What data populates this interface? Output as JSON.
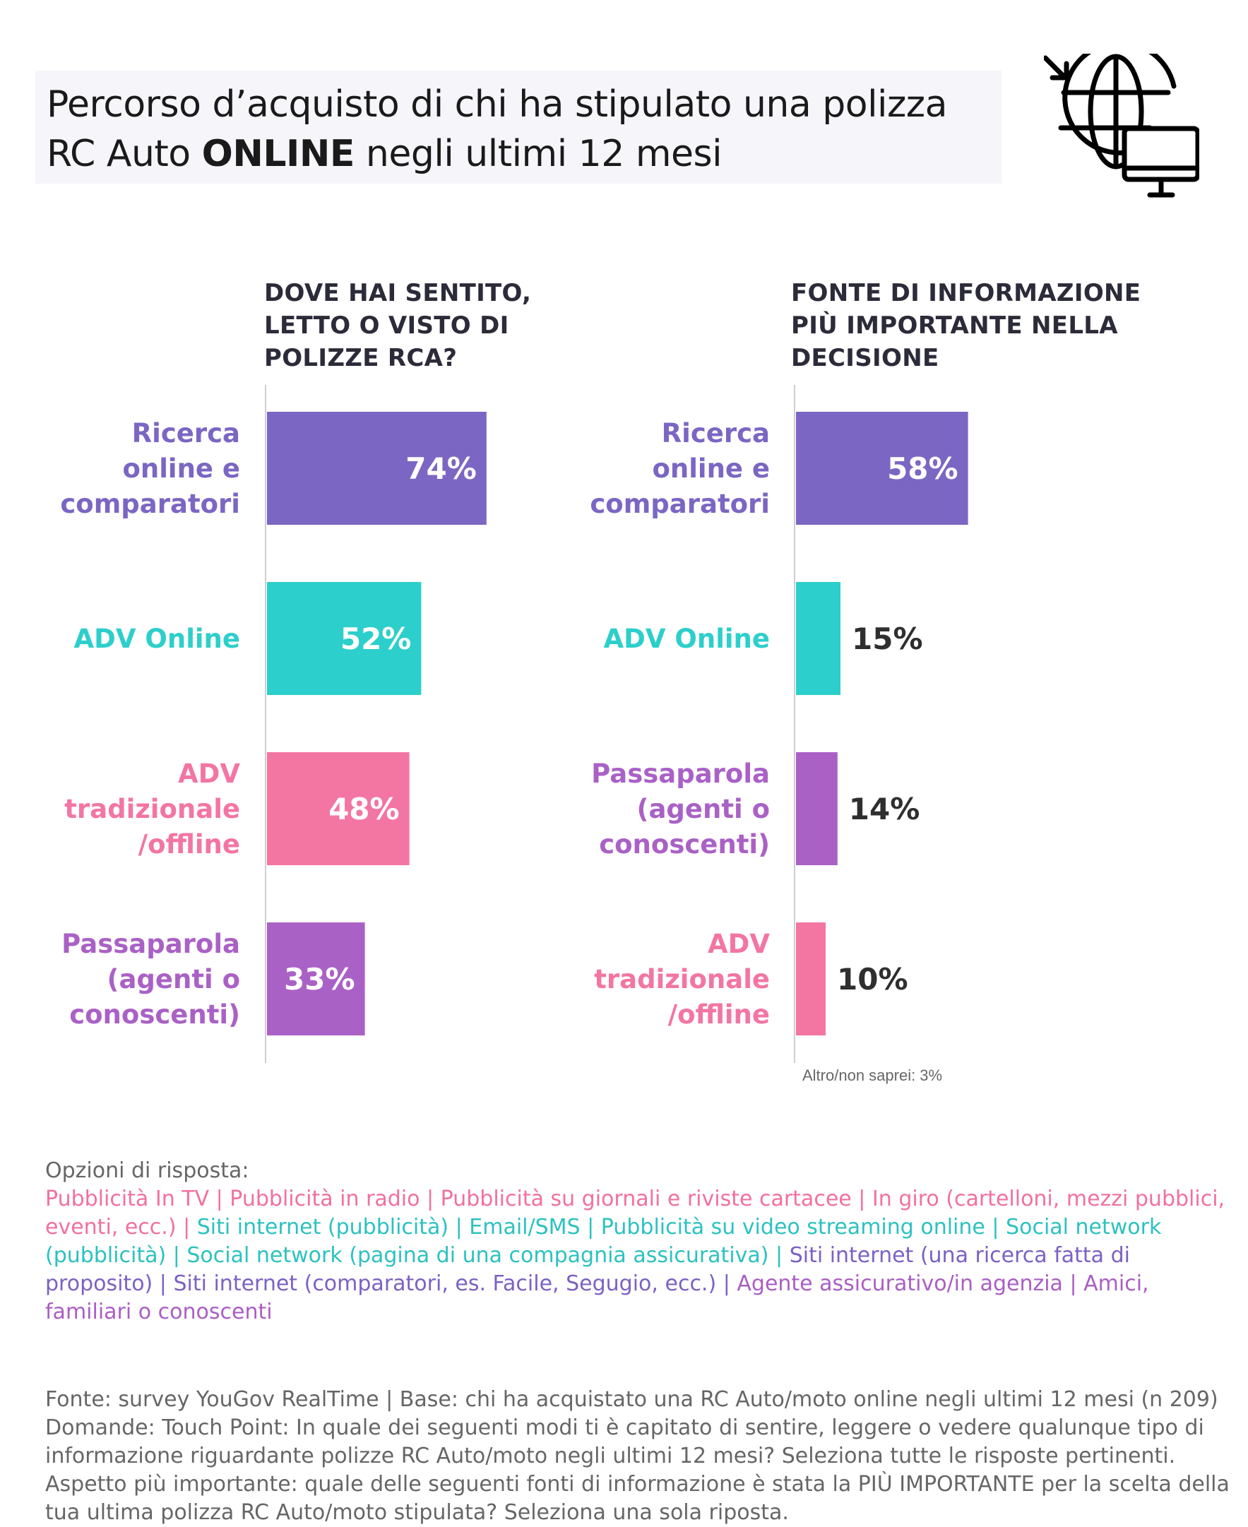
{
  "title": {
    "line1": "Percorso d’acquisto di chi ha stipulato una polizza",
    "line2_pre": "RC Auto ",
    "line2_bold": "ONLINE",
    "line2_post": " negli ultimi 12 mesi"
  },
  "icon": "globe-monitor-icon",
  "colors": {
    "ricerca": "#7b66c3",
    "adv_online": "#2ccfcb",
    "adv_trad": "#f375a2",
    "passaparola": "#aa61c6",
    "axis": "#cfcfcf",
    "value_dark": "#2f2f2f",
    "value_light": "#ffffff"
  },
  "chart_data": [
    {
      "type": "bar",
      "orientation": "horizontal",
      "title": "DOVE HAI SENTITO, LETTO O VISTO DI POLIZZE RCA?",
      "title_lines": [
        "DOVE HAI SENTITO,",
        "LETTO O VISTO DI",
        "POLIZZE RCA?"
      ],
      "categories": [
        {
          "lines": [
            "Ricerca",
            "online e",
            "comparatori"
          ],
          "key": "ricerca"
        },
        {
          "lines": [
            "ADV Online"
          ],
          "key": "adv_online"
        },
        {
          "lines": [
            "ADV",
            "tradizionale",
            "/offline"
          ],
          "key": "adv_trad"
        },
        {
          "lines": [
            "Passaparola",
            "(agenti o",
            "conoscenti)"
          ],
          "key": "passaparola"
        }
      ],
      "values": [
        74,
        52,
        48,
        33
      ],
      "value_labels": [
        "74%",
        "52%",
        "48%",
        "33%"
      ],
      "xlim": [
        0,
        100
      ]
    },
    {
      "type": "bar",
      "orientation": "horizontal",
      "title": "FONTE DI INFORMAZIONE PIÙ IMPORTANTE NELLA DECISIONE",
      "title_lines": [
        "FONTE DI INFORMAZIONE",
        "PIÙ IMPORTANTE NELLA",
        "DECISIONE"
      ],
      "categories": [
        {
          "lines": [
            "Ricerca",
            "online e",
            "comparatori"
          ],
          "key": "ricerca"
        },
        {
          "lines": [
            "ADV Online"
          ],
          "key": "adv_online"
        },
        {
          "lines": [
            "Passaparola",
            "(agenti o",
            "conoscenti)"
          ],
          "key": "passaparola"
        },
        {
          "lines": [
            "ADV",
            "tradizionale",
            "/offline"
          ],
          "key": "adv_trad"
        }
      ],
      "values": [
        58,
        15,
        14,
        10
      ],
      "value_labels": [
        "58%",
        "15%",
        "14%",
        "10%"
      ],
      "xlim": [
        0,
        100
      ],
      "note": "Altro/non saprei: 3%"
    }
  ],
  "options": {
    "title": "Opzioni di risposta:",
    "items": [
      {
        "text": "Pubblicità In TV",
        "group": "pink"
      },
      {
        "text": "Pubblicità in radio",
        "group": "pink"
      },
      {
        "text": "Pubblicità su giornali e riviste cartacee",
        "group": "pink"
      },
      {
        "text": "In giro (cartelloni, mezzi pubblici, eventi, ecc.)",
        "group": "pink"
      },
      {
        "text": "Siti internet (pubblicità)",
        "group": "teal"
      },
      {
        "text": "Email/SMS",
        "group": "teal"
      },
      {
        "text": "Pubblicità su video streaming online",
        "group": "teal"
      },
      {
        "text": "Social network (pubblicità)",
        "group": "teal"
      },
      {
        "text": "Social network (pagina di una compagnia assicurativa)",
        "group": "teal"
      },
      {
        "text": "Siti internet (una ricerca fatta di proposito)",
        "group": "indigo"
      },
      {
        "text": "Siti internet (comparatori, es. Facile, Segugio, ecc.)",
        "group": "indigo"
      },
      {
        "text": "Agente assicurativo/in agenzia",
        "group": "purple"
      },
      {
        "text": "Amici, familiari o conoscenti",
        "group": "purple"
      }
    ],
    "separator": "|"
  },
  "source": {
    "line1": "Fonte: survey YouGov RealTime | Base: chi ha acquistato una RC Auto/moto online negli ultimi 12 mesi (n 209)",
    "line2": "Domande: Touch Point: In quale dei seguenti modi ti è capitato di sentire, leggere o vedere qualunque tipo di informazione riguardante polizze RC Auto/moto negli ultimi 12 mesi? Seleziona tutte le risposte pertinenti. Aspetto più importante: quale delle seguenti fonti di informazione è stata la PIÙ IMPORTANTE per la scelta della tua ultima polizza RC Auto/moto stipulata? Seleziona una sola riposta."
  }
}
